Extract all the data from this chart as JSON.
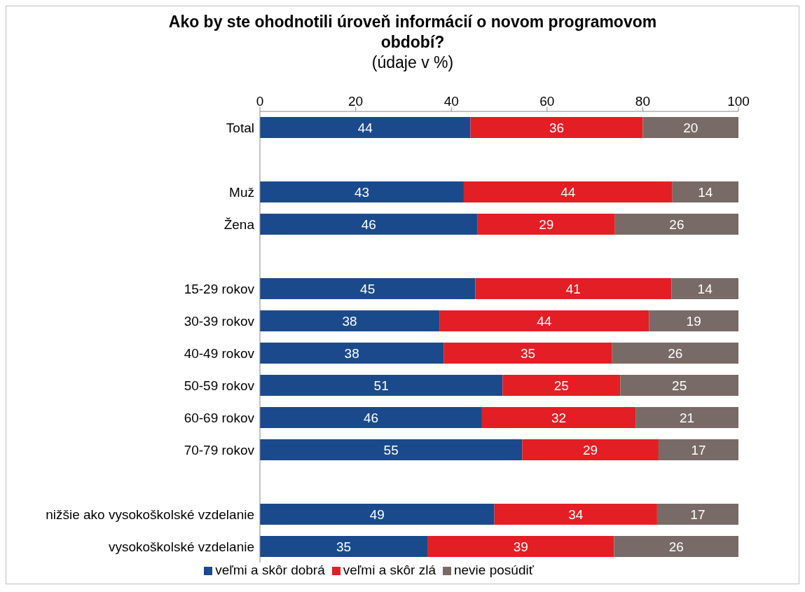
{
  "chart_data": {
    "type": "bar",
    "orientation": "horizontal",
    "stacked": true,
    "title": "Ako by ste ohodnotili úroveň informácií o novom programovom období?",
    "subtitle": "(údaje v %)",
    "categories": [
      "Total",
      null,
      "Muž",
      "Žena",
      null,
      "15-29 rokov",
      "30-39 rokov",
      "40-49 rokov",
      "50-59 rokov",
      "60-69 rokov",
      "70-79 rokov",
      null,
      "nižšie ako vysokoškolské vzdelanie",
      "vysokoškolské vzdelanie"
    ],
    "series": [
      {
        "name": "veľmi a skôr dobrá",
        "color": "#1a4a8c",
        "values": [
          44,
          null,
          42.6,
          45.5,
          null,
          45,
          37.5,
          38.4,
          50.7,
          46.4,
          54.8,
          null,
          49,
          35
        ],
        "value_labels": [
          "44",
          null,
          "43",
          "46",
          null,
          "45",
          "38",
          "38",
          "51",
          "46",
          "55",
          null,
          "49",
          "35"
        ]
      },
      {
        "name": "veľmi a skôr zlá",
        "color": "#e31e24",
        "values": [
          36,
          null,
          43.6,
          28.7,
          null,
          41,
          43.8,
          35.2,
          24.6,
          32.1,
          28.5,
          null,
          34,
          39
        ],
        "value_labels": [
          "36",
          null,
          "44",
          "29",
          null,
          "41",
          "44",
          "35",
          "25",
          "32",
          "29",
          null,
          "34",
          "39"
        ]
      },
      {
        "name": "nevie posúdiť",
        "color": "#786a66",
        "values": [
          20,
          null,
          13.8,
          25.8,
          null,
          14,
          18.7,
          26.4,
          24.7,
          21.5,
          16.7,
          null,
          17,
          26
        ],
        "value_labels": [
          "20",
          null,
          "14",
          "26",
          null,
          "14",
          "19",
          "26",
          "25",
          "21",
          "17",
          null,
          "17",
          "26"
        ]
      }
    ],
    "xlim": [
      0,
      100
    ],
    "xticks": [
      0,
      20,
      40,
      60,
      80,
      100
    ],
    "legend": "bottom",
    "grid": false
  }
}
